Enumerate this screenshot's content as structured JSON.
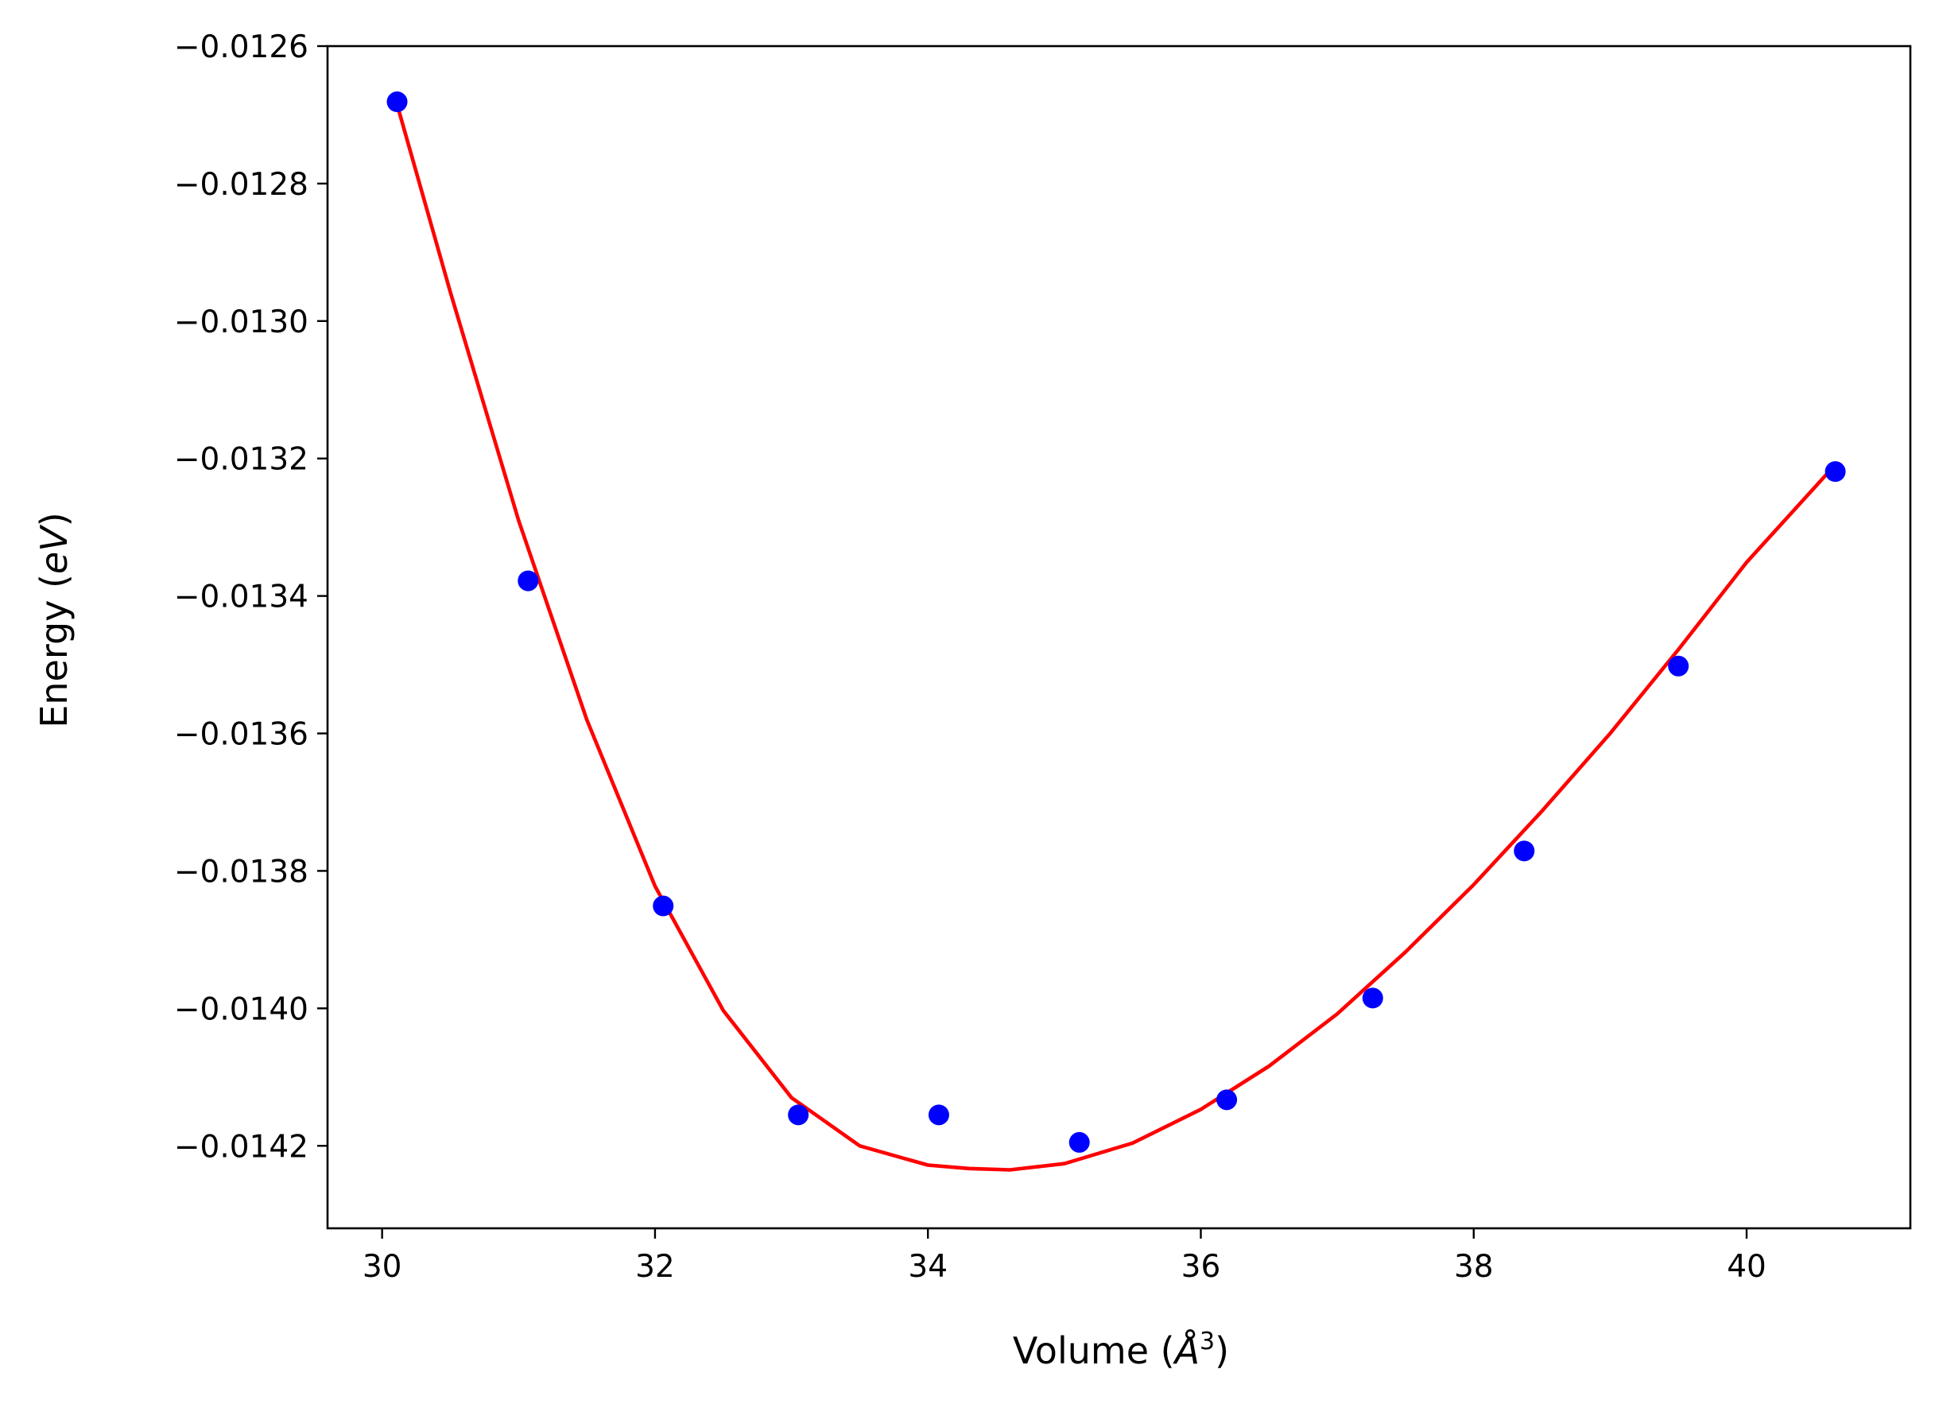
{
  "chart_data": {
    "type": "scatter",
    "title": "",
    "xlabel": "Volume (Å³)",
    "xlabel_parts": {
      "prefix": "Volume (",
      "symbol": "Å",
      "exponent": "3",
      "suffix": ")"
    },
    "ylabel": "Energy (eV)",
    "ylabel_parts": {
      "prefix": "Energy (",
      "unit": "eV",
      "suffix": ")"
    },
    "xlim": [
      29.6,
      41.2
    ],
    "ylim": [
      -0.01432,
      -0.0126
    ],
    "xticks": [
      30,
      32,
      34,
      36,
      38,
      40
    ],
    "xtick_labels": [
      "30",
      "32",
      "34",
      "36",
      "38",
      "40"
    ],
    "yticks": [
      -0.0126,
      -0.0128,
      -0.013,
      -0.0132,
      -0.0134,
      -0.0136,
      -0.0138,
      -0.014,
      -0.0142
    ],
    "ytick_labels": [
      "−0.0126",
      "−0.0128",
      "−0.0130",
      "−0.0132",
      "−0.0134",
      "−0.0136",
      "−0.0138",
      "−0.0140",
      "−0.0142"
    ],
    "grid": false,
    "series": [
      {
        "kind": "scatter",
        "color": "#0000ff",
        "x": [
          30.11,
          31.07,
          32.06,
          33.05,
          34.08,
          35.11,
          36.19,
          37.26,
          38.37,
          39.5,
          40.65
        ],
        "y": [
          -0.012681,
          -0.013378,
          -0.013851,
          -0.014155,
          -0.014155,
          -0.014195,
          -0.014133,
          -0.013985,
          -0.013771,
          -0.013502,
          -0.013219
        ]
      },
      {
        "kind": "line",
        "color": "#ff0000",
        "x": [
          30.11,
          30.5,
          31.0,
          31.5,
          32.0,
          32.5,
          33.0,
          33.5,
          34.0,
          34.3,
          34.6,
          35.0,
          35.5,
          36.0,
          36.5,
          37.0,
          37.5,
          38.0,
          38.5,
          39.0,
          39.5,
          40.0,
          40.65
        ],
        "y": [
          -0.012685,
          -0.012958,
          -0.01329,
          -0.01358,
          -0.013822,
          -0.014003,
          -0.01413,
          -0.0142,
          -0.014228,
          -0.014233,
          -0.014235,
          -0.014226,
          -0.014196,
          -0.014147,
          -0.014084,
          -0.014008,
          -0.013918,
          -0.01382,
          -0.013713,
          -0.0136,
          -0.013478,
          -0.013351,
          -0.013209
        ]
      }
    ]
  }
}
